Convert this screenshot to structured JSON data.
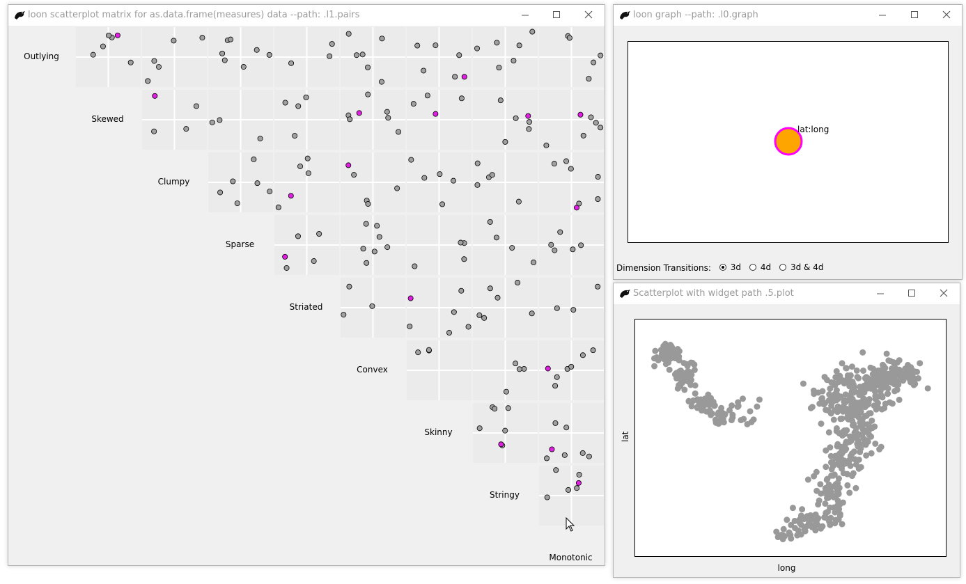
{
  "windows": {
    "matrix": {
      "title": "loon scatterplot matrix for as.data.frame(measures) data --path: .l1.pairs",
      "variables": [
        "Outlying",
        "Skewed",
        "Clumpy",
        "Sparse",
        "Striated",
        "Convex",
        "Skinny",
        "Stringy",
        "Monotonic"
      ]
    },
    "graph": {
      "title": "loon graph --path: .l0.graph",
      "node_label": "lat:long",
      "node_fill": "#ffa500",
      "node_stroke": "#ff00ff",
      "dim_label": "Dimension Transitions:",
      "options": [
        {
          "label": "3d",
          "selected": true
        },
        {
          "label": "4d",
          "selected": false
        },
        {
          "label": "3d & 4d",
          "selected": false
        }
      ]
    },
    "scatter": {
      "title": "Scatterplot with widget path .5.plot",
      "xlabel": "long",
      "ylabel": "lat",
      "point_color": "#999999"
    }
  },
  "colors": {
    "selected": "#e020e0",
    "point": "#a0a0a0",
    "panel": "#ebebeb"
  },
  "icons": [
    "loon-icon",
    "minimize-icon",
    "maximize-icon",
    "close-icon",
    "mouse-cursor-icon"
  ]
}
